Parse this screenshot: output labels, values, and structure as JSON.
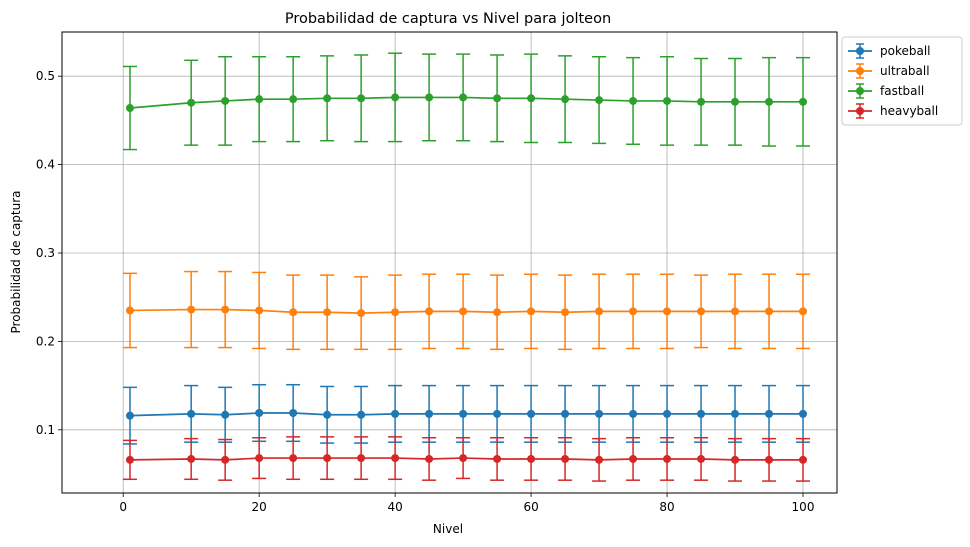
{
  "chart_data": {
    "type": "line",
    "title": "Probabilidad de captura vs Nivel para jolteon",
    "xlabel": "Nivel",
    "ylabel": "Probabilidad de captura",
    "xlim": [
      -9,
      105
    ],
    "ylim": [
      0.0285,
      0.55
    ],
    "xticks": [
      0,
      20,
      40,
      60,
      80,
      100
    ],
    "yticks": [
      0.1,
      0.2,
      0.3,
      0.4,
      0.5
    ],
    "xtick_labels": [
      "0",
      "20",
      "40",
      "60",
      "80",
      "100"
    ],
    "ytick_labels": [
      "0.1",
      "0.2",
      "0.3",
      "0.4",
      "0.5"
    ],
    "grid": true,
    "legend_position": "outside-top-right",
    "x": [
      1,
      10,
      15,
      20,
      25,
      30,
      35,
      40,
      45,
      50,
      55,
      60,
      65,
      70,
      75,
      80,
      85,
      90,
      95,
      100
    ],
    "series": [
      {
        "name": "pokeball",
        "color": "#1f77b4",
        "values": [
          0.116,
          0.118,
          0.117,
          0.119,
          0.119,
          0.117,
          0.117,
          0.118,
          0.118,
          0.118,
          0.118,
          0.118,
          0.118,
          0.118,
          0.118,
          0.118,
          0.118,
          0.118,
          0.118,
          0.118
        ],
        "errors": [
          0.032,
          0.032,
          0.031,
          0.032,
          0.032,
          0.032,
          0.032,
          0.032,
          0.032,
          0.032,
          0.032,
          0.032,
          0.032,
          0.032,
          0.032,
          0.032,
          0.032,
          0.032,
          0.032,
          0.032
        ]
      },
      {
        "name": "ultraball",
        "color": "#ff7f0e",
        "values": [
          0.235,
          0.236,
          0.236,
          0.235,
          0.233,
          0.233,
          0.232,
          0.233,
          0.234,
          0.234,
          0.233,
          0.234,
          0.233,
          0.234,
          0.234,
          0.234,
          0.234,
          0.234,
          0.234,
          0.234
        ],
        "errors": [
          0.042,
          0.043,
          0.043,
          0.043,
          0.042,
          0.042,
          0.041,
          0.042,
          0.042,
          0.042,
          0.042,
          0.042,
          0.042,
          0.042,
          0.042,
          0.042,
          0.041,
          0.042,
          0.042,
          0.042
        ]
      },
      {
        "name": "fastball",
        "color": "#2ca02c",
        "values": [
          0.464,
          0.47,
          0.472,
          0.474,
          0.474,
          0.475,
          0.475,
          0.476,
          0.476,
          0.476,
          0.475,
          0.475,
          0.474,
          0.473,
          0.472,
          0.472,
          0.471,
          0.471,
          0.471,
          0.471
        ],
        "errors": [
          0.047,
          0.048,
          0.05,
          0.048,
          0.048,
          0.048,
          0.049,
          0.05,
          0.049,
          0.049,
          0.049,
          0.05,
          0.049,
          0.049,
          0.049,
          0.05,
          0.049,
          0.049,
          0.05,
          0.05
        ]
      },
      {
        "name": "heavyball",
        "color": "#d62728",
        "values": [
          0.066,
          0.067,
          0.066,
          0.068,
          0.068,
          0.068,
          0.068,
          0.068,
          0.067,
          0.068,
          0.067,
          0.067,
          0.067,
          0.066,
          0.067,
          0.067,
          0.067,
          0.066,
          0.066,
          0.066
        ],
        "errors": [
          0.022,
          0.023,
          0.023,
          0.023,
          0.024,
          0.024,
          0.024,
          0.024,
          0.024,
          0.023,
          0.024,
          0.024,
          0.024,
          0.024,
          0.024,
          0.024,
          0.024,
          0.024,
          0.024,
          0.024
        ]
      }
    ]
  }
}
